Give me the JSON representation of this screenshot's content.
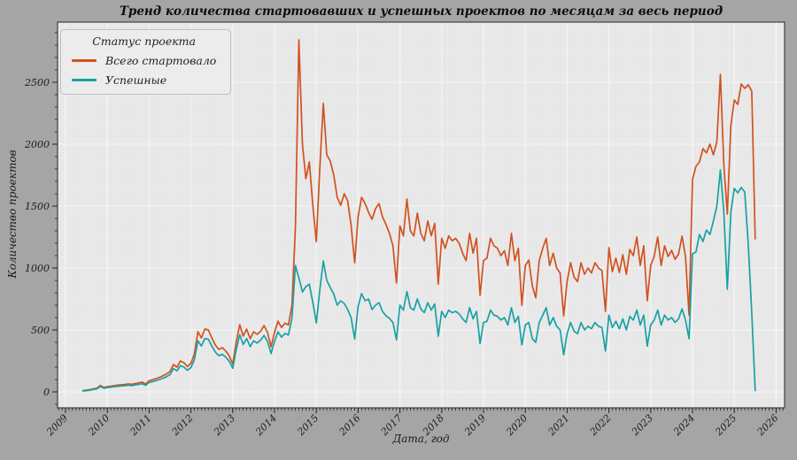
{
  "title": "Тренд количества стартовавших и успешных проектов по месяцам за весь период",
  "axes": {
    "x_label": "Дата, год",
    "y_label": "Количество проектов"
  },
  "legend": {
    "title": "Статус проекта",
    "items": [
      {
        "label": "Всего стартовало",
        "color": "#d1521f"
      },
      {
        "label": "Успешные",
        "color": "#18a1a5"
      }
    ]
  },
  "chart_data": {
    "type": "line",
    "title": "Тренд количества стартовавших и успешных проектов по месяцам за весь период",
    "xlabel": "Дата, год",
    "ylabel": "Количество проектов",
    "x_start_month": "2009-06",
    "x_end_month": "2025-07",
    "x_frequency": "monthly",
    "x_tick_labels": [
      "2009",
      "2010",
      "2011",
      "2012",
      "2013",
      "2014",
      "2015",
      "2016",
      "2017",
      "2018",
      "2019",
      "2020",
      "2021",
      "2022",
      "2023",
      "2024",
      "2025",
      "2026"
    ],
    "y_ticks": [
      0,
      500,
      1000,
      1500,
      2000,
      2500
    ],
    "ylim": [
      -130,
      2990
    ],
    "grid": true,
    "minor_grid": "monthly dotted",
    "legend_position": "upper left",
    "plot_bg": "#e9e9e9",
    "figure_bg": "#a5a5a5",
    "series": [
      {
        "name": "Всего стартовало",
        "color": "#d1521f",
        "values": [
          10,
          14,
          18,
          24,
          30,
          52,
          36,
          42,
          46,
          50,
          54,
          57,
          60,
          64,
          61,
          67,
          73,
          79,
          64,
          90,
          98,
          108,
          118,
          130,
          145,
          165,
          221,
          200,
          250,
          235,
          205,
          230,
          307,
          486,
          436,
          507,
          500,
          436,
          379,
          343,
          357,
          330,
          290,
          225,
          400,
          543,
          450,
          507,
          429,
          486,
          464,
          490,
          536,
          480,
          364,
          480,
          571,
          520,
          555,
          540,
          700,
          1330,
          2843,
          2000,
          1721,
          1857,
          1500,
          1214,
          1800,
          2329,
          1914,
          1864,
          1750,
          1571,
          1507,
          1600,
          1543,
          1343,
          1043,
          1414,
          1571,
          1521,
          1450,
          1393,
          1480,
          1521,
          1414,
          1350,
          1280,
          1180,
          879,
          1340,
          1260,
          1557,
          1300,
          1260,
          1443,
          1280,
          1220,
          1380,
          1260,
          1360,
          870,
          1240,
          1160,
          1260,
          1220,
          1240,
          1200,
          1120,
          1060,
          1280,
          1120,
          1240,
          780,
          1060,
          1080,
          1240,
          1180,
          1160,
          1100,
          1140,
          1020,
          1280,
          1060,
          1160,
          700,
          1020,
          1064,
          857,
          760,
          1060,
          1160,
          1240,
          1020,
          1120,
          1000,
          960,
          614,
          891,
          1043,
          926,
          891,
          1043,
          950,
          1000,
          960,
          1043,
          1000,
          980,
          650,
          1164,
          971,
          1079,
          964,
          1107,
          950,
          1150,
          1100,
          1250,
          1021,
          1179,
          736,
          1021,
          1093,
          1250,
          1021,
          1179,
          1093,
          1143,
          1071,
          1114,
          1257,
          1093,
          620,
          1714,
          1821,
          1857,
          1964,
          1929,
          2000,
          1914,
          2021,
          2564,
          1829,
          1436,
          2150,
          2357,
          2321,
          2486,
          2450,
          2480,
          2429,
          1236
        ]
      },
      {
        "name": "Успешные",
        "color": "#18a1a5",
        "values": [
          7,
          10,
          14,
          19,
          25,
          43,
          29,
          35,
          38,
          42,
          45,
          48,
          50,
          54,
          51,
          56,
          61,
          66,
          53,
          76,
          83,
          91,
          100,
          110,
          123,
          140,
          188,
          170,
          212,
          200,
          174,
          196,
          261,
          413,
          371,
          431,
          425,
          371,
          322,
          292,
          303,
          281,
          247,
          191,
          340,
          462,
          383,
          431,
          365,
          413,
          394,
          417,
          456,
          408,
          309,
          408,
          485,
          442,
          472,
          459,
          595,
          1021,
          920,
          807,
          850,
          870,
          720,
          557,
          820,
          1057,
          900,
          843,
          790,
          700,
          736,
          714,
          664,
          600,
          428,
          690,
          793,
          736,
          750,
          664,
          700,
          721,
          650,
          614,
          593,
          560,
          420,
          700,
          660,
          810,
          680,
          660,
          750,
          670,
          640,
          720,
          660,
          710,
          450,
          650,
          600,
          660,
          640,
          650,
          630,
          590,
          560,
          680,
          590,
          650,
          390,
          560,
          570,
          660,
          620,
          610,
          580,
          600,
          540,
          680,
          560,
          610,
          380,
          540,
          560,
          430,
          400,
          560,
          620,
          680,
          540,
          600,
          530,
          500,
          300,
          470,
          560,
          490,
          470,
          560,
          500,
          530,
          510,
          560,
          530,
          520,
          330,
          620,
          520,
          570,
          510,
          590,
          500,
          610,
          580,
          660,
          540,
          620,
          370,
          540,
          580,
          660,
          540,
          620,
          580,
          600,
          560,
          590,
          670,
          580,
          430,
          1114,
          1129,
          1271,
          1214,
          1307,
          1271,
          1380,
          1500,
          1793,
          1450,
          829,
          1450,
          1643,
          1607,
          1650,
          1614,
          1200,
          640,
          10
        ]
      }
    ]
  }
}
